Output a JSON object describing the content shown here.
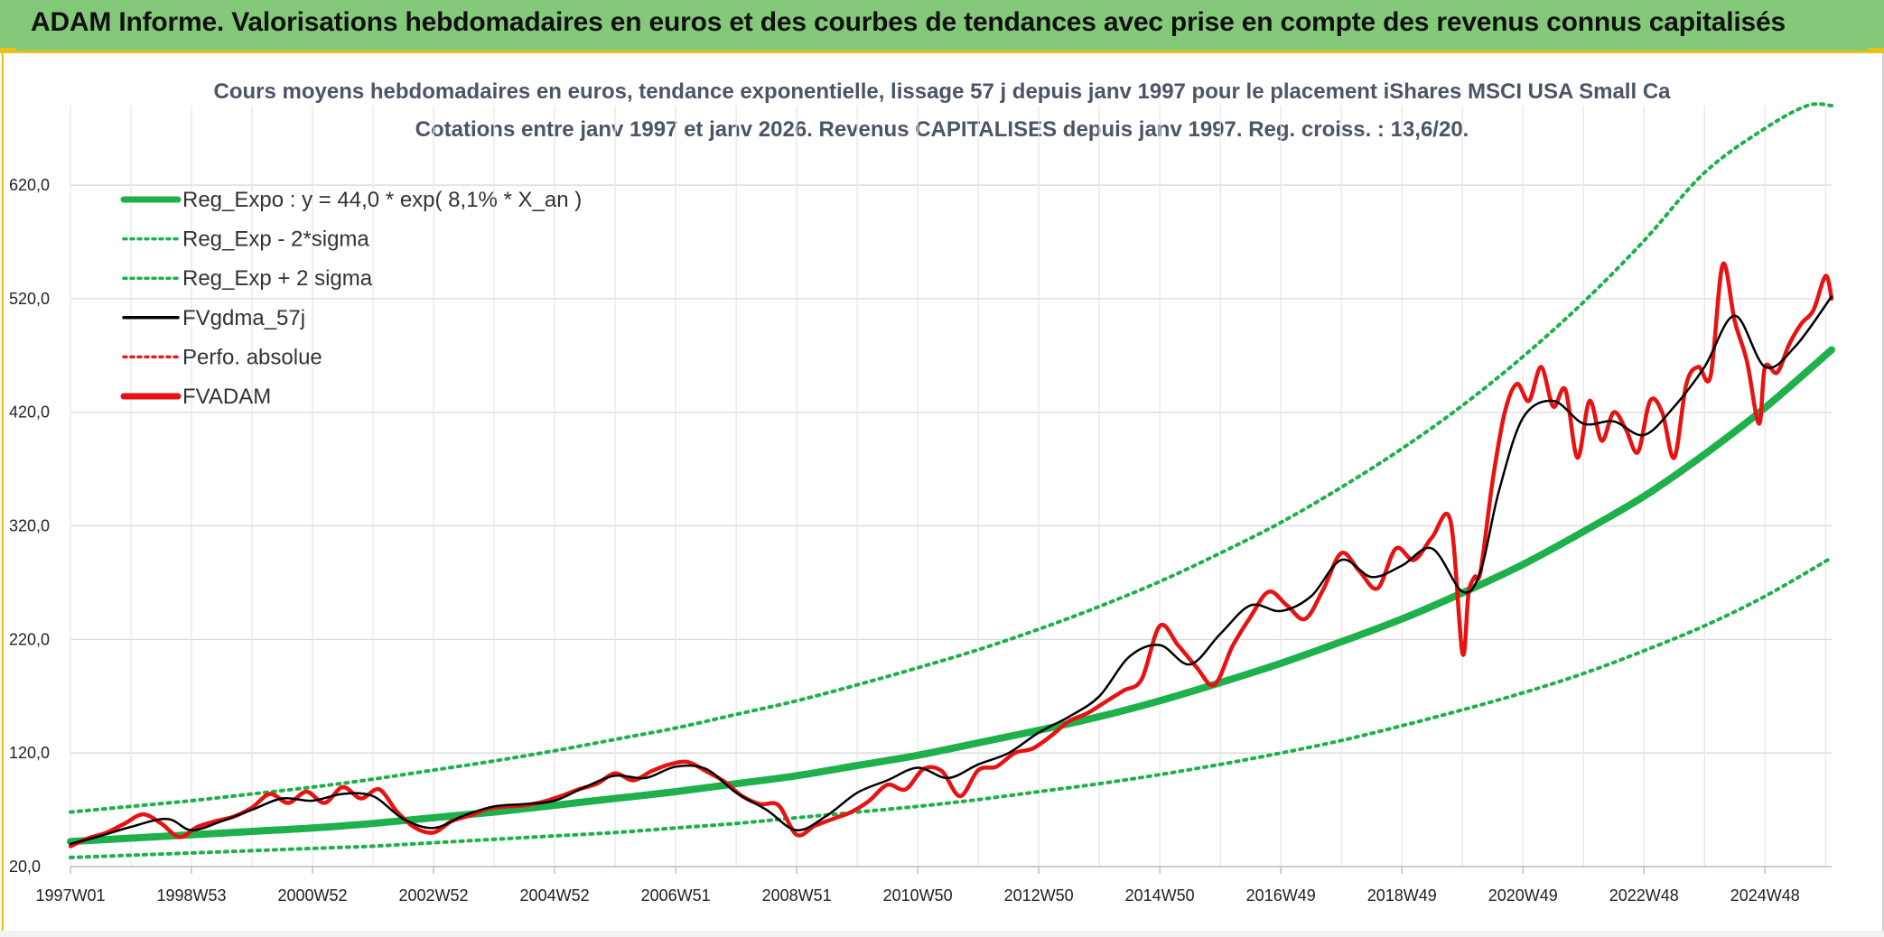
{
  "header": {
    "title": "ADAM Informe. Valorisations hebdomadaires en euros et des courbes de tendances avec prise en compte des revenus connus capitalisés"
  },
  "colors": {
    "header_bg": "#84c97a",
    "accent": "#e8c21a",
    "reg_expo": "#1db04b",
    "sigma": "#1db04b",
    "fvgdma": "#000000",
    "perfo": "#e02020",
    "fvadam": "#e81212",
    "grid": "#d9d9d9"
  },
  "chart_data": {
    "type": "line",
    "title": "Cours moyens hebdomadaires en euros, tendance exponentielle, lissage 57 j depuis janv 1997 pour le placement iShares MSCI USA Small Ca",
    "subtitle": "Cotations entre janv 1997 et janv 2026. Revenus CAPITALISES depuis janv 1997. Reg. croiss. : 13,6/20.",
    "xlabel": "",
    "ylabel": "",
    "xlim": [
      1997.0,
      2026.1
    ],
    "ylim": [
      20,
      690
    ],
    "y_ticks": [
      20,
      120,
      220,
      320,
      420,
      520,
      620
    ],
    "y_tick_labels": [
      "20,0",
      "120,0",
      "220,0",
      "320,0",
      "420,0",
      "520,0",
      "620,0"
    ],
    "x_ticks": [
      1997.0,
      1999.0,
      2001.0,
      2003.0,
      2005.0,
      2007.0,
      2009.0,
      2011.0,
      2013.0,
      2015.0,
      2017.0,
      2019.0,
      2021.0,
      2023.0,
      2025.0
    ],
    "x_tick_labels": [
      "1997W01",
      "1998W53",
      "2000W52",
      "2002W52",
      "2004W52",
      "2006W51",
      "2008W51",
      "2010W50",
      "2012W50",
      "2014W50",
      "2016W49",
      "2018W49",
      "2020W49",
      "2022W48",
      "2024W48"
    ],
    "grid": true,
    "legend_placement": "top-left",
    "legend": [
      {
        "label": "Reg_Expo : y = 44,0 * exp( 8,1% *  X_an )",
        "style": "solid-thick",
        "color": "#1db04b"
      },
      {
        "label": "Reg_Exp - 2*sigma",
        "style": "dotted",
        "color": "#1db04b"
      },
      {
        "label": "Reg_Exp + 2 sigma",
        "style": "dotted",
        "color": "#1db04b"
      },
      {
        "label": "FVgdma_57j",
        "style": "solid",
        "color": "#000000"
      },
      {
        "label": "Perfo. absolue",
        "style": "dotted",
        "color": "#e02020"
      },
      {
        "label": "FVADAM",
        "style": "solid-thick",
        "color": "#e81212"
      }
    ],
    "series": [
      {
        "name": "Reg_Expo : y = 44,0 * exp( 8,1% *  X_an )",
        "x": [
          1997.0,
          1998.0,
          1999.0,
          2000.0,
          2001.0,
          2002.0,
          2003.0,
          2004.0,
          2005.0,
          2006.0,
          2007.0,
          2008.0,
          2009.0,
          2010.0,
          2011.0,
          2012.0,
          2013.0,
          2014.0,
          2015.0,
          2016.0,
          2017.0,
          2018.0,
          2019.0,
          2020.0,
          2021.0,
          2022.0,
          2023.0,
          2024.0,
          2025.0,
          2026.1
        ],
        "values": [
          42,
          45,
          48,
          51,
          54,
          58,
          63,
          68,
          74,
          80,
          86,
          93,
          100,
          109,
          118,
          129,
          140,
          152,
          166,
          182,
          199,
          218,
          238,
          261,
          286,
          315,
          346,
          383,
          424,
          475
        ]
      },
      {
        "name": "Reg_Exp - 2*sigma",
        "x": [
          1997.0,
          1998.0,
          1999.0,
          2000.0,
          2001.0,
          2002.0,
          2003.0,
          2004.0,
          2005.0,
          2006.0,
          2007.0,
          2008.0,
          2009.0,
          2010.0,
          2011.0,
          2012.0,
          2013.0,
          2014.0,
          2015.0,
          2016.0,
          2017.0,
          2018.0,
          2019.0,
          2020.0,
          2021.0,
          2022.0,
          2023.0,
          2024.0,
          2025.0,
          2026.1
        ],
        "values": [
          28,
          30,
          32,
          34,
          36,
          38,
          41,
          44,
          47,
          50,
          54,
          58,
          63,
          68,
          73,
          79,
          86,
          93,
          101,
          110,
          120,
          131,
          144,
          158,
          173,
          190,
          210,
          232,
          258,
          292
        ]
      },
      {
        "name": "Reg_Exp + 2 sigma",
        "x": [
          1997.0,
          1998.0,
          1999.0,
          2000.0,
          2001.0,
          2002.0,
          2003.0,
          2004.0,
          2005.0,
          2006.0,
          2007.0,
          2008.0,
          2009.0,
          2010.0,
          2011.0,
          2012.0,
          2013.0,
          2014.0,
          2015.0,
          2016.0,
          2017.0,
          2018.0,
          2019.0,
          2020.0,
          2021.0,
          2022.0,
          2023.0,
          2024.0,
          2025.0,
          2025.7,
          2026.1
        ],
        "values": [
          68,
          73,
          78,
          84,
          90,
          97,
          105,
          113,
          122,
          132,
          142,
          154,
          166,
          180,
          195,
          211,
          229,
          249,
          271,
          296,
          323,
          354,
          388,
          426,
          469,
          517,
          571,
          631,
          670,
          690,
          690
        ]
      },
      {
        "name": "FVgdma_57j",
        "x": [
          1997.0,
          1997.5,
          1998.0,
          1998.6,
          1999.0,
          1999.5,
          2000.0,
          2000.5,
          2001.0,
          2001.5,
          2002.0,
          2002.5,
          2003.0,
          2003.5,
          2004.0,
          2004.5,
          2005.0,
          2005.5,
          2006.0,
          2006.5,
          2007.0,
          2007.5,
          2008.0,
          2008.5,
          2009.0,
          2009.5,
          2010.0,
          2010.5,
          2011.0,
          2011.5,
          2012.0,
          2012.5,
          2013.0,
          2013.5,
          2014.0,
          2014.5,
          2015.0,
          2015.5,
          2016.0,
          2016.5,
          2017.0,
          2017.5,
          2018.0,
          2018.5,
          2019.0,
          2019.5,
          2020.0,
          2020.3,
          2020.6,
          2021.0,
          2021.5,
          2022.0,
          2022.5,
          2023.0,
          2023.5,
          2024.0,
          2024.5,
          2025.0,
          2025.5,
          2026.1
        ],
        "values": [
          40,
          47,
          55,
          62,
          52,
          60,
          70,
          80,
          78,
          84,
          82,
          62,
          54,
          65,
          73,
          75,
          78,
          90,
          100,
          98,
          108,
          106,
          85,
          70,
          52,
          65,
          85,
          96,
          107,
          98,
          110,
          120,
          138,
          152,
          170,
          205,
          215,
          198,
          225,
          250,
          245,
          258,
          290,
          275,
          285,
          300,
          262,
          280,
          350,
          415,
          430,
          410,
          412,
          400,
          425,
          460,
          505,
          460,
          478,
          522
        ]
      },
      {
        "name": "FVADAM",
        "x": [
          1997.0,
          1997.3,
          1997.6,
          1997.9,
          1998.2,
          1998.5,
          1998.8,
          1999.1,
          1999.4,
          1999.7,
          2000.0,
          2000.3,
          2000.6,
          2000.9,
          2001.2,
          2001.5,
          2001.8,
          2002.1,
          2002.4,
          2002.7,
          2003.0,
          2003.3,
          2003.6,
          2003.9,
          2004.2,
          2004.5,
          2004.8,
          2005.1,
          2005.4,
          2005.7,
          2006.0,
          2006.3,
          2006.6,
          2006.9,
          2007.2,
          2007.5,
          2007.8,
          2008.1,
          2008.4,
          2008.7,
          2009.0,
          2009.3,
          2009.6,
          2009.9,
          2010.2,
          2010.5,
          2010.8,
          2011.1,
          2011.4,
          2011.7,
          2012.0,
          2012.3,
          2012.6,
          2012.9,
          2013.2,
          2013.5,
          2013.8,
          2014.1,
          2014.4,
          2014.7,
          2015.0,
          2015.3,
          2015.6,
          2015.9,
          2016.2,
          2016.5,
          2016.8,
          2017.1,
          2017.4,
          2017.7,
          2018.0,
          2018.3,
          2018.6,
          2018.9,
          2019.2,
          2019.5,
          2019.8,
          2020.0,
          2020.1,
          2020.2,
          2020.3,
          2020.5,
          2020.7,
          2020.9,
          2021.1,
          2021.3,
          2021.5,
          2021.7,
          2021.9,
          2022.1,
          2022.3,
          2022.5,
          2022.7,
          2022.9,
          2023.1,
          2023.3,
          2023.5,
          2023.7,
          2023.9,
          2024.1,
          2024.3,
          2024.5,
          2024.7,
          2024.9,
          2025.0,
          2025.2,
          2025.4,
          2025.6,
          2025.8,
          2026.0,
          2026.1
        ],
        "values": [
          38,
          45,
          50,
          58,
          66,
          58,
          46,
          55,
          60,
          64,
          72,
          84,
          76,
          86,
          76,
          90,
          80,
          88,
          68,
          54,
          50,
          60,
          65,
          71,
          73,
          74,
          77,
          82,
          88,
          93,
          102,
          96,
          104,
          110,
          112,
          104,
          95,
          82,
          75,
          74,
          48,
          56,
          62,
          68,
          78,
          92,
          88,
          106,
          104,
          82,
          105,
          108,
          120,
          124,
          135,
          148,
          155,
          165,
          175,
          185,
          232,
          215,
          196,
          180,
          214,
          240,
          262,
          250,
          238,
          264,
          296,
          280,
          265,
          300,
          290,
          310,
          325,
          208,
          260,
          275,
          280,
          360,
          420,
          445,
          430,
          460,
          425,
          440,
          380,
          430,
          395,
          420,
          405,
          385,
          430,
          420,
          380,
          445,
          460,
          452,
          550,
          500,
          465,
          410,
          460,
          455,
          480,
          498,
          510,
          540,
          520
        ]
      }
    ]
  }
}
